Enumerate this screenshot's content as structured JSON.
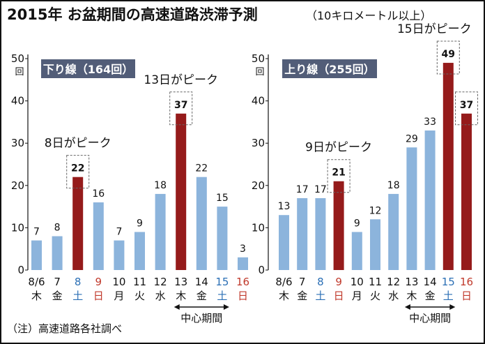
{
  "title": "2015年 お盆期間の高速道路渋滞予測",
  "subtitle": "（10キロメートル以上）",
  "note": "（注）高速道路各社調べ",
  "unit_label": "回",
  "colors": {
    "normal": "#8cb4dc",
    "peak": "#951b1b",
    "badge": "#525d78",
    "weekday_text": "#111111",
    "saturday_text": "#2b6fb5",
    "sunday_text": "#c0392b"
  },
  "chart_data": [
    {
      "type": "bar",
      "title": "下り線（164回）",
      "ylim": [
        0,
        50
      ],
      "yticks": [
        0,
        10,
        20,
        30,
        40,
        50
      ],
      "categories": [
        {
          "date": "8/6",
          "day": "木",
          "kind": "weekday"
        },
        {
          "date": "7",
          "day": "金",
          "kind": "weekday"
        },
        {
          "date": "8",
          "day": "土",
          "kind": "saturday"
        },
        {
          "date": "9",
          "day": "日",
          "kind": "sunday"
        },
        {
          "date": "10",
          "day": "月",
          "kind": "weekday"
        },
        {
          "date": "11",
          "day": "火",
          "kind": "weekday"
        },
        {
          "date": "12",
          "day": "水",
          "kind": "weekday"
        },
        {
          "date": "13",
          "day": "木",
          "kind": "weekday"
        },
        {
          "date": "14",
          "day": "金",
          "kind": "weekday"
        },
        {
          "date": "15",
          "day": "土",
          "kind": "saturday"
        },
        {
          "date": "16",
          "day": "日",
          "kind": "sunday"
        }
      ],
      "values": [
        7,
        8,
        22,
        16,
        7,
        9,
        18,
        37,
        22,
        15,
        3
      ],
      "peak_indices": [
        2,
        7
      ],
      "peak_labels": [
        {
          "index": 2,
          "text": "8日がピーク"
        },
        {
          "index": 7,
          "text": "13日がピーク"
        }
      ],
      "center_period": {
        "label": "中心期間",
        "from_index": 7,
        "to_index": 9
      }
    },
    {
      "type": "bar",
      "title": "上り線（255回）",
      "ylim": [
        0,
        50
      ],
      "yticks": [
        0,
        10,
        20,
        30,
        40,
        50
      ],
      "categories": [
        {
          "date": "8/6",
          "day": "木",
          "kind": "weekday"
        },
        {
          "date": "7",
          "day": "金",
          "kind": "weekday"
        },
        {
          "date": "8",
          "day": "土",
          "kind": "saturday"
        },
        {
          "date": "9",
          "day": "日",
          "kind": "sunday"
        },
        {
          "date": "10",
          "day": "月",
          "kind": "weekday"
        },
        {
          "date": "11",
          "day": "火",
          "kind": "weekday"
        },
        {
          "date": "12",
          "day": "水",
          "kind": "weekday"
        },
        {
          "date": "13",
          "day": "木",
          "kind": "weekday"
        },
        {
          "date": "14",
          "day": "金",
          "kind": "weekday"
        },
        {
          "date": "15",
          "day": "土",
          "kind": "saturday"
        },
        {
          "date": "16",
          "day": "日",
          "kind": "sunday"
        }
      ],
      "values": [
        13,
        17,
        17,
        21,
        9,
        12,
        18,
        29,
        33,
        49,
        37
      ],
      "peak_indices": [
        3,
        9,
        10
      ],
      "peak_labels": [
        {
          "index": 3,
          "text": "9日がピーク"
        },
        {
          "index": 9,
          "text": "15日がピーク"
        }
      ],
      "center_period": {
        "label": "中心期間",
        "from_index": 7,
        "to_index": 9
      }
    }
  ]
}
